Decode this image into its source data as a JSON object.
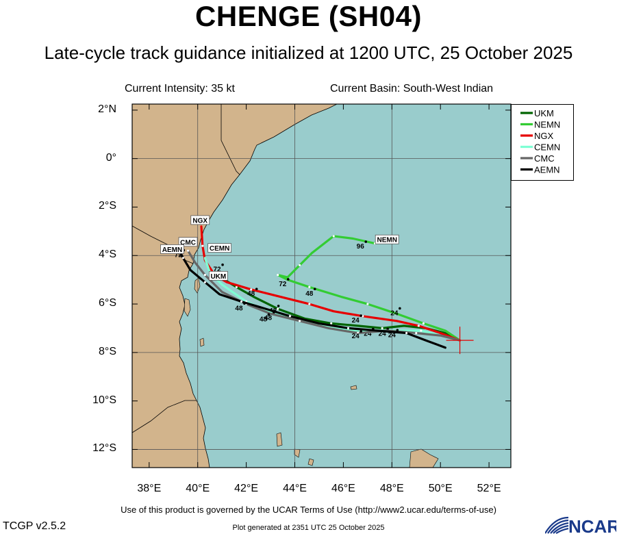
{
  "header": {
    "title": "CHENGE (SH04)",
    "subtitle": "Late-cycle track guidance initialized at 1200 UTC, 25 October 2025",
    "current_intensity": "Current Intensity: 35 kt",
    "current_basin": "Current Basin: South-West Indian"
  },
  "axes": {
    "lat_labels": [
      "2°N",
      "0°",
      "2°S",
      "4°S",
      "6°S",
      "8°S",
      "10°S",
      "12°S"
    ],
    "lon_labels": [
      "38°E",
      "40°E",
      "42°E",
      "44°E",
      "46°E",
      "48°E",
      "50°E",
      "52°E"
    ]
  },
  "colors": {
    "land": "#d2b48c",
    "ocean": "#99cccc",
    "UKM": "#006400",
    "NEMN": "#33cc33",
    "NGX": "#e60000",
    "CEMN": "#7fffd4",
    "CMC": "#666666",
    "AEMN": "#000000"
  },
  "legend": [
    {
      "name": "UKM",
      "color": "#006400"
    },
    {
      "name": "NEMN",
      "color": "#33cc33"
    },
    {
      "name": "NGX",
      "color": "#e60000"
    },
    {
      "name": "CEMN",
      "color": "#7fffd4"
    },
    {
      "name": "CMC",
      "color": "#666666"
    },
    {
      "name": "AEMN",
      "color": "#000000"
    }
  ],
  "map_data": {
    "lon_range": [
      37.3,
      52.9
    ],
    "lat_range": [
      -12.75,
      2.25
    ],
    "storm_position": {
      "lon": 50.8,
      "lat": -7.5
    },
    "tracks": [
      {
        "model": "UKM",
        "points": [
          [
            50.8,
            -7.5
          ],
          [
            50.2,
            -7.2
          ],
          [
            49.4,
            -7.0
          ],
          [
            48.5,
            -6.9
          ],
          [
            47.6,
            -7.0
          ],
          [
            46.6,
            -6.9
          ],
          [
            45.5,
            -6.8
          ],
          [
            44.4,
            -6.6
          ],
          [
            43.3,
            -6.2
          ],
          [
            42.3,
            -5.7
          ],
          [
            41.6,
            -5.3
          ],
          [
            41.1,
            -5.0
          ],
          [
            40.6,
            -4.9
          ]
        ],
        "labels": [
          {
            "text": "24",
            "lon": 47.0,
            "lat": -7.2
          },
          {
            "text": "48",
            "lon": 43.1,
            "lat": -6.25
          }
        ],
        "tag": {
          "text": "UKM",
          "lon": 40.85,
          "lat": -4.85
        }
      },
      {
        "model": "NEMN",
        "points": [
          [
            50.8,
            -7.5
          ],
          [
            50.2,
            -7.1
          ],
          [
            49.3,
            -6.8
          ],
          [
            48.2,
            -6.4
          ],
          [
            47.0,
            -6.0
          ],
          [
            45.9,
            -5.7
          ],
          [
            44.6,
            -5.3
          ],
          [
            43.7,
            -5.0
          ],
          [
            43.3,
            -4.8
          ],
          [
            43.7,
            -4.9
          ],
          [
            44.2,
            -4.4
          ],
          [
            44.7,
            -3.9
          ],
          [
            45.6,
            -3.2
          ],
          [
            46.4,
            -3.3
          ],
          [
            47.3,
            -3.5
          ]
        ],
        "labels": [
          {
            "text": "24",
            "lon": 48.1,
            "lat": -6.35
          },
          {
            "text": "48",
            "lon": 44.6,
            "lat": -5.55
          },
          {
            "text": "72",
            "lon": 43.5,
            "lat": -5.15
          },
          {
            "text": "96",
            "lon": 46.7,
            "lat": -3.6
          }
        ],
        "tag": {
          "text": "NEMN",
          "lon": 47.8,
          "lat": -3.35
        }
      },
      {
        "model": "NGX",
        "points": [
          [
            50.8,
            -7.5
          ],
          [
            50.0,
            -7.2
          ],
          [
            49.1,
            -6.9
          ],
          [
            48.2,
            -6.7
          ],
          [
            46.8,
            -6.5
          ],
          [
            45.6,
            -6.3
          ],
          [
            44.6,
            -6.0
          ],
          [
            43.4,
            -5.7
          ],
          [
            42.2,
            -5.4
          ],
          [
            41.2,
            -5.1
          ],
          [
            40.7,
            -4.8
          ],
          [
            40.3,
            -4.2
          ],
          [
            40.2,
            -3.6
          ],
          [
            40.15,
            -2.8
          ]
        ],
        "labels": [
          {
            "text": "24",
            "lon": 46.5,
            "lat": -6.65
          },
          {
            "text": "48",
            "lon": 42.2,
            "lat": -5.55
          }
        ],
        "tag": {
          "text": "NGX",
          "lon": 40.1,
          "lat": -2.55
        }
      },
      {
        "model": "CEMN",
        "points": [
          [
            50.8,
            -7.5
          ],
          [
            50.0,
            -7.3
          ],
          [
            49.2,
            -7.1
          ],
          [
            48.0,
            -7.1
          ],
          [
            46.7,
            -7.1
          ],
          [
            45.5,
            -7.0
          ],
          [
            44.3,
            -6.7
          ],
          [
            43.1,
            -6.4
          ],
          [
            42.0,
            -5.9
          ],
          [
            41.0,
            -5.2
          ],
          [
            40.5,
            -4.7
          ],
          [
            40.3,
            -4.1
          ]
        ],
        "labels": [
          {
            "text": "24",
            "lon": 47.6,
            "lat": -7.2
          },
          {
            "text": "48",
            "lon": 42.9,
            "lat": -6.55
          }
        ],
        "tag": {
          "text": "CEMN",
          "lon": 40.9,
          "lat": -3.7
        }
      },
      {
        "model": "CMC",
        "points": [
          [
            50.8,
            -7.5
          ],
          [
            50.0,
            -7.3
          ],
          [
            49.0,
            -7.2
          ],
          [
            47.8,
            -7.1
          ],
          [
            46.6,
            -7.2
          ],
          [
            45.4,
            -7.0
          ],
          [
            44.2,
            -6.7
          ],
          [
            43.0,
            -6.4
          ],
          [
            42.0,
            -6.0
          ],
          [
            41.0,
            -5.5
          ],
          [
            40.3,
            -4.8
          ],
          [
            39.9,
            -4.3
          ],
          [
            39.6,
            -3.8
          ]
        ],
        "labels": [
          {
            "text": "24",
            "lon": 46.5,
            "lat": -7.3
          },
          {
            "text": "48",
            "lon": 42.7,
            "lat": -6.6
          },
          {
            "text": "72",
            "lon": 40.8,
            "lat": -4.55
          }
        ],
        "tag": {
          "text": "CMC",
          "lon": 39.6,
          "lat": -3.45
        }
      },
      {
        "model": "AEMN",
        "points": [
          [
            50.2,
            -7.8
          ],
          [
            49.4,
            -7.5
          ],
          [
            48.6,
            -7.2
          ],
          [
            47.4,
            -7.1
          ],
          [
            46.2,
            -7.0
          ],
          [
            45.0,
            -6.8
          ],
          [
            43.8,
            -6.5
          ],
          [
            42.8,
            -6.2
          ],
          [
            41.8,
            -5.9
          ],
          [
            40.9,
            -5.6
          ],
          [
            40.3,
            -5.1
          ],
          [
            39.7,
            -4.6
          ],
          [
            39.4,
            -4.1
          ],
          [
            39.25,
            -3.8
          ]
        ],
        "labels": [
          {
            "text": "24",
            "lon": 48.0,
            "lat": -7.25
          },
          {
            "text": "48",
            "lon": 41.7,
            "lat": -6.15
          },
          {
            "text": "72",
            "lon": 39.2,
            "lat": -3.95
          }
        ],
        "tag": {
          "text": "AEMN",
          "lon": 38.95,
          "lat": -3.75
        }
      }
    ]
  },
  "footer": {
    "terms": "Use of this product is governed by the UCAR Terms of Use (http://www2.ucar.edu/terms-of-use)",
    "version": "TCGP v2.5.2",
    "plot_generated": "Plot generated at 2351 UTC   25 October 2025",
    "logo_text": "NCAR"
  }
}
